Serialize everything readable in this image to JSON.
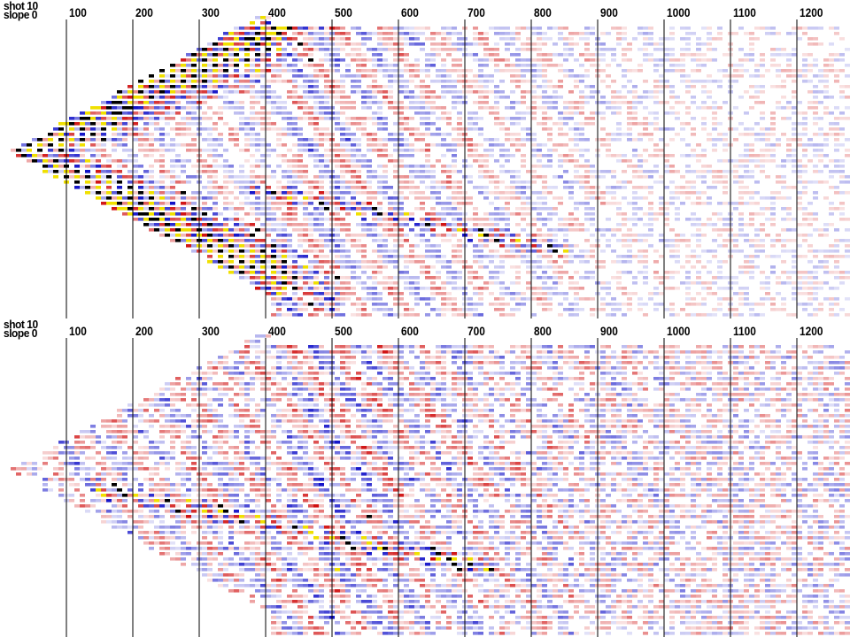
{
  "panels": [
    {
      "header_line1": "shot 10",
      "header_line2": "slope 0"
    },
    {
      "header_line1": "shot 10",
      "header_line2": "slope 0"
    }
  ],
  "chart_data": [
    {
      "type": "heatmap",
      "xticks": [
        100,
        200,
        300,
        400,
        500,
        600,
        700,
        800,
        900,
        1000,
        1100,
        1200
      ],
      "xlim": [
        0,
        1280
      ],
      "colormap": {
        "negative": "#d01010",
        "positive": "#1010c8",
        "clip_positive": "#f0e000",
        "clip_negative": "#000000",
        "zero": "#ffffff"
      },
      "grid": true,
      "events": [
        {
          "kind": "direct-arrival",
          "apex_x": 50,
          "slope": 0.53,
          "strength": 1.0
        },
        {
          "kind": "refraction",
          "from_x": 300,
          "to_x": 820,
          "strength": 0.8
        }
      ]
    },
    {
      "type": "heatmap",
      "xticks": [
        100,
        200,
        300,
        400,
        500,
        600,
        700,
        800,
        900,
        1000,
        1100,
        1200
      ],
      "xlim": [
        0,
        1280
      ],
      "colormap": {
        "negative": "#d01010",
        "positive": "#1010c8",
        "clip_positive": "#f0e000",
        "clip_negative": "#000000",
        "zero": "#ffffff"
      },
      "grid": true,
      "events": [
        {
          "kind": "residual-refraction",
          "from_x": 100,
          "to_x": 700,
          "strength": 0.7
        }
      ]
    }
  ]
}
